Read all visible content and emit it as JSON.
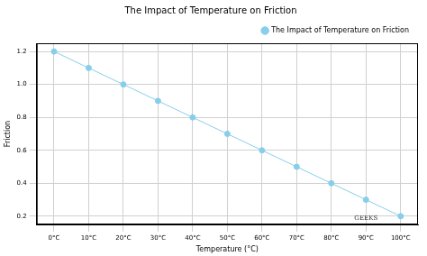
{
  "chart_data": {
    "type": "line",
    "title": "The Impact of Temperature on Friction",
    "x_label": "Temperature (°C)",
    "y_label": "Friction",
    "categories": [
      "0°C",
      "10°C",
      "20°C",
      "30°C",
      "40°C",
      "50°C",
      "60°C",
      "70°C",
      "80°C",
      "90°C",
      "100°C"
    ],
    "series": [
      {
        "name": "The Impact of Temperature on Friction",
        "color": "#87ceeb",
        "marker": "circle",
        "line_style": "solid",
        "values": [
          1.2,
          1.1,
          1.0,
          0.9,
          0.8,
          0.7,
          0.6,
          0.5,
          0.4,
          0.3,
          0.2
        ]
      }
    ],
    "ylim": [
      0.15,
      1.25
    ],
    "yticks": [
      0.2,
      0.4,
      0.6,
      0.8,
      {
        "value": 1,
        "label": "1.0"
      },
      {
        "value": 1.2,
        "label": "1.2"
      }
    ],
    "grid": true,
    "legend": "upper right",
    "watermark": "GEEKS"
  }
}
